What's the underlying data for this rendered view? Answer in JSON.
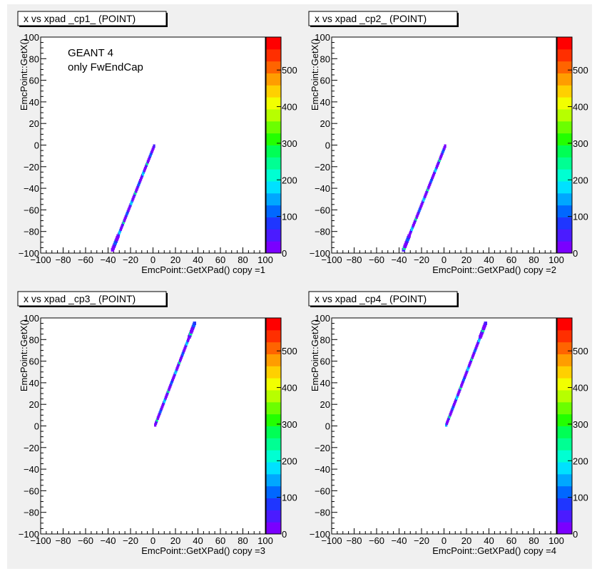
{
  "canvas": {
    "background": "#f0f0f0",
    "frame_color": "#000000",
    "pad_color": "#ffffff"
  },
  "palette": [
    "#7a00ff",
    "#4b1bff",
    "#1f36ff",
    "#0068ff",
    "#00a7ff",
    "#00e1ff",
    "#00ffd2",
    "#00ff93",
    "#00ff55",
    "#23ff00",
    "#6bff00",
    "#b7ff00",
    "#f2ff00",
    "#ffd000",
    "#ff9d00",
    "#ff6400",
    "#ff2f00",
    "#ff0000"
  ],
  "chart_data": [
    {
      "type": "scatter",
      "title": "x vs xpad _cp1_ (POINT)",
      "xlabel": "EmcPoint::GetXPad()  copy =1",
      "ylabel": "EmcPoint::GetX()",
      "xlim": [
        -100,
        100
      ],
      "ylim": [
        -100,
        100
      ],
      "x_ticks": [
        "−100",
        "−80",
        "−60",
        "−40",
        "−20",
        "0",
        "20",
        "40",
        "60",
        "80",
        "100"
      ],
      "y_ticks": [
        "−100",
        "−80",
        "−60",
        "−40",
        "−20",
        "0",
        "20",
        "40",
        "60",
        "80",
        "100"
      ],
      "z_ticks": [
        "0",
        "100",
        "200",
        "300",
        "400",
        "500"
      ],
      "zlim": [
        0,
        590
      ],
      "annotations": [
        "GEANT 4",
        "only FwEndCap"
      ],
      "band": {
        "x_start": -36,
        "y_start": -97,
        "x_end": 1,
        "y_end": -1
      }
    },
    {
      "type": "scatter",
      "title": "x vs xpad _cp2_ (POINT)",
      "xlabel": "EmcPoint::GetXPad()  copy =2",
      "ylabel": "EmcPoint::GetX()",
      "xlim": [
        -100,
        100
      ],
      "ylim": [
        -100,
        100
      ],
      "x_ticks": [
        "−100",
        "−80",
        "−60",
        "−40",
        "−20",
        "0",
        "20",
        "40",
        "60",
        "80",
        "100"
      ],
      "y_ticks": [
        "−100",
        "−80",
        "−60",
        "−40",
        "−20",
        "0",
        "20",
        "40",
        "60",
        "80",
        "100"
      ],
      "z_ticks": [
        "0",
        "100",
        "200",
        "300",
        "400",
        "500"
      ],
      "zlim": [
        0,
        590
      ],
      "annotations": [],
      "band": {
        "x_start": -36,
        "y_start": -97,
        "x_end": 1,
        "y_end": -1
      }
    },
    {
      "type": "scatter",
      "title": "x vs xpad _cp3_ (POINT)",
      "xlabel": "EmcPoint::GetXPad()  copy =3",
      "ylabel": "EmcPoint::GetX()",
      "xlim": [
        -100,
        100
      ],
      "ylim": [
        -100,
        100
      ],
      "x_ticks": [
        "−100",
        "−80",
        "−60",
        "−40",
        "−20",
        "0",
        "20",
        "40",
        "60",
        "80",
        "100"
      ],
      "y_ticks": [
        "−100",
        "−80",
        "−60",
        "−40",
        "−20",
        "0",
        "20",
        "40",
        "60",
        "80",
        "100"
      ],
      "z_ticks": [
        "0",
        "100",
        "200",
        "300",
        "400",
        "500"
      ],
      "zlim": [
        0,
        590
      ],
      "annotations": [],
      "band": {
        "x_start": 2,
        "y_start": 1,
        "x_end": 37,
        "y_end": 95
      }
    },
    {
      "type": "scatter",
      "title": "x vs xpad _cp4_ (POINT)",
      "xlabel": "EmcPoint::GetXPad()  copy =4",
      "ylabel": "EmcPoint::GetX()",
      "xlim": [
        -100,
        100
      ],
      "ylim": [
        -100,
        100
      ],
      "x_ticks": [
        "−100",
        "−80",
        "−60",
        "−40",
        "−20",
        "0",
        "20",
        "40",
        "60",
        "80",
        "100"
      ],
      "y_ticks": [
        "−100",
        "−80",
        "−60",
        "−40",
        "−20",
        "0",
        "20",
        "40",
        "60",
        "80",
        "100"
      ],
      "z_ticks": [
        "0",
        "100",
        "200",
        "300",
        "400",
        "500"
      ],
      "zlim": [
        0,
        590
      ],
      "annotations": [],
      "band": {
        "x_start": 2,
        "y_start": 1,
        "x_end": 37,
        "y_end": 95
      }
    }
  ]
}
